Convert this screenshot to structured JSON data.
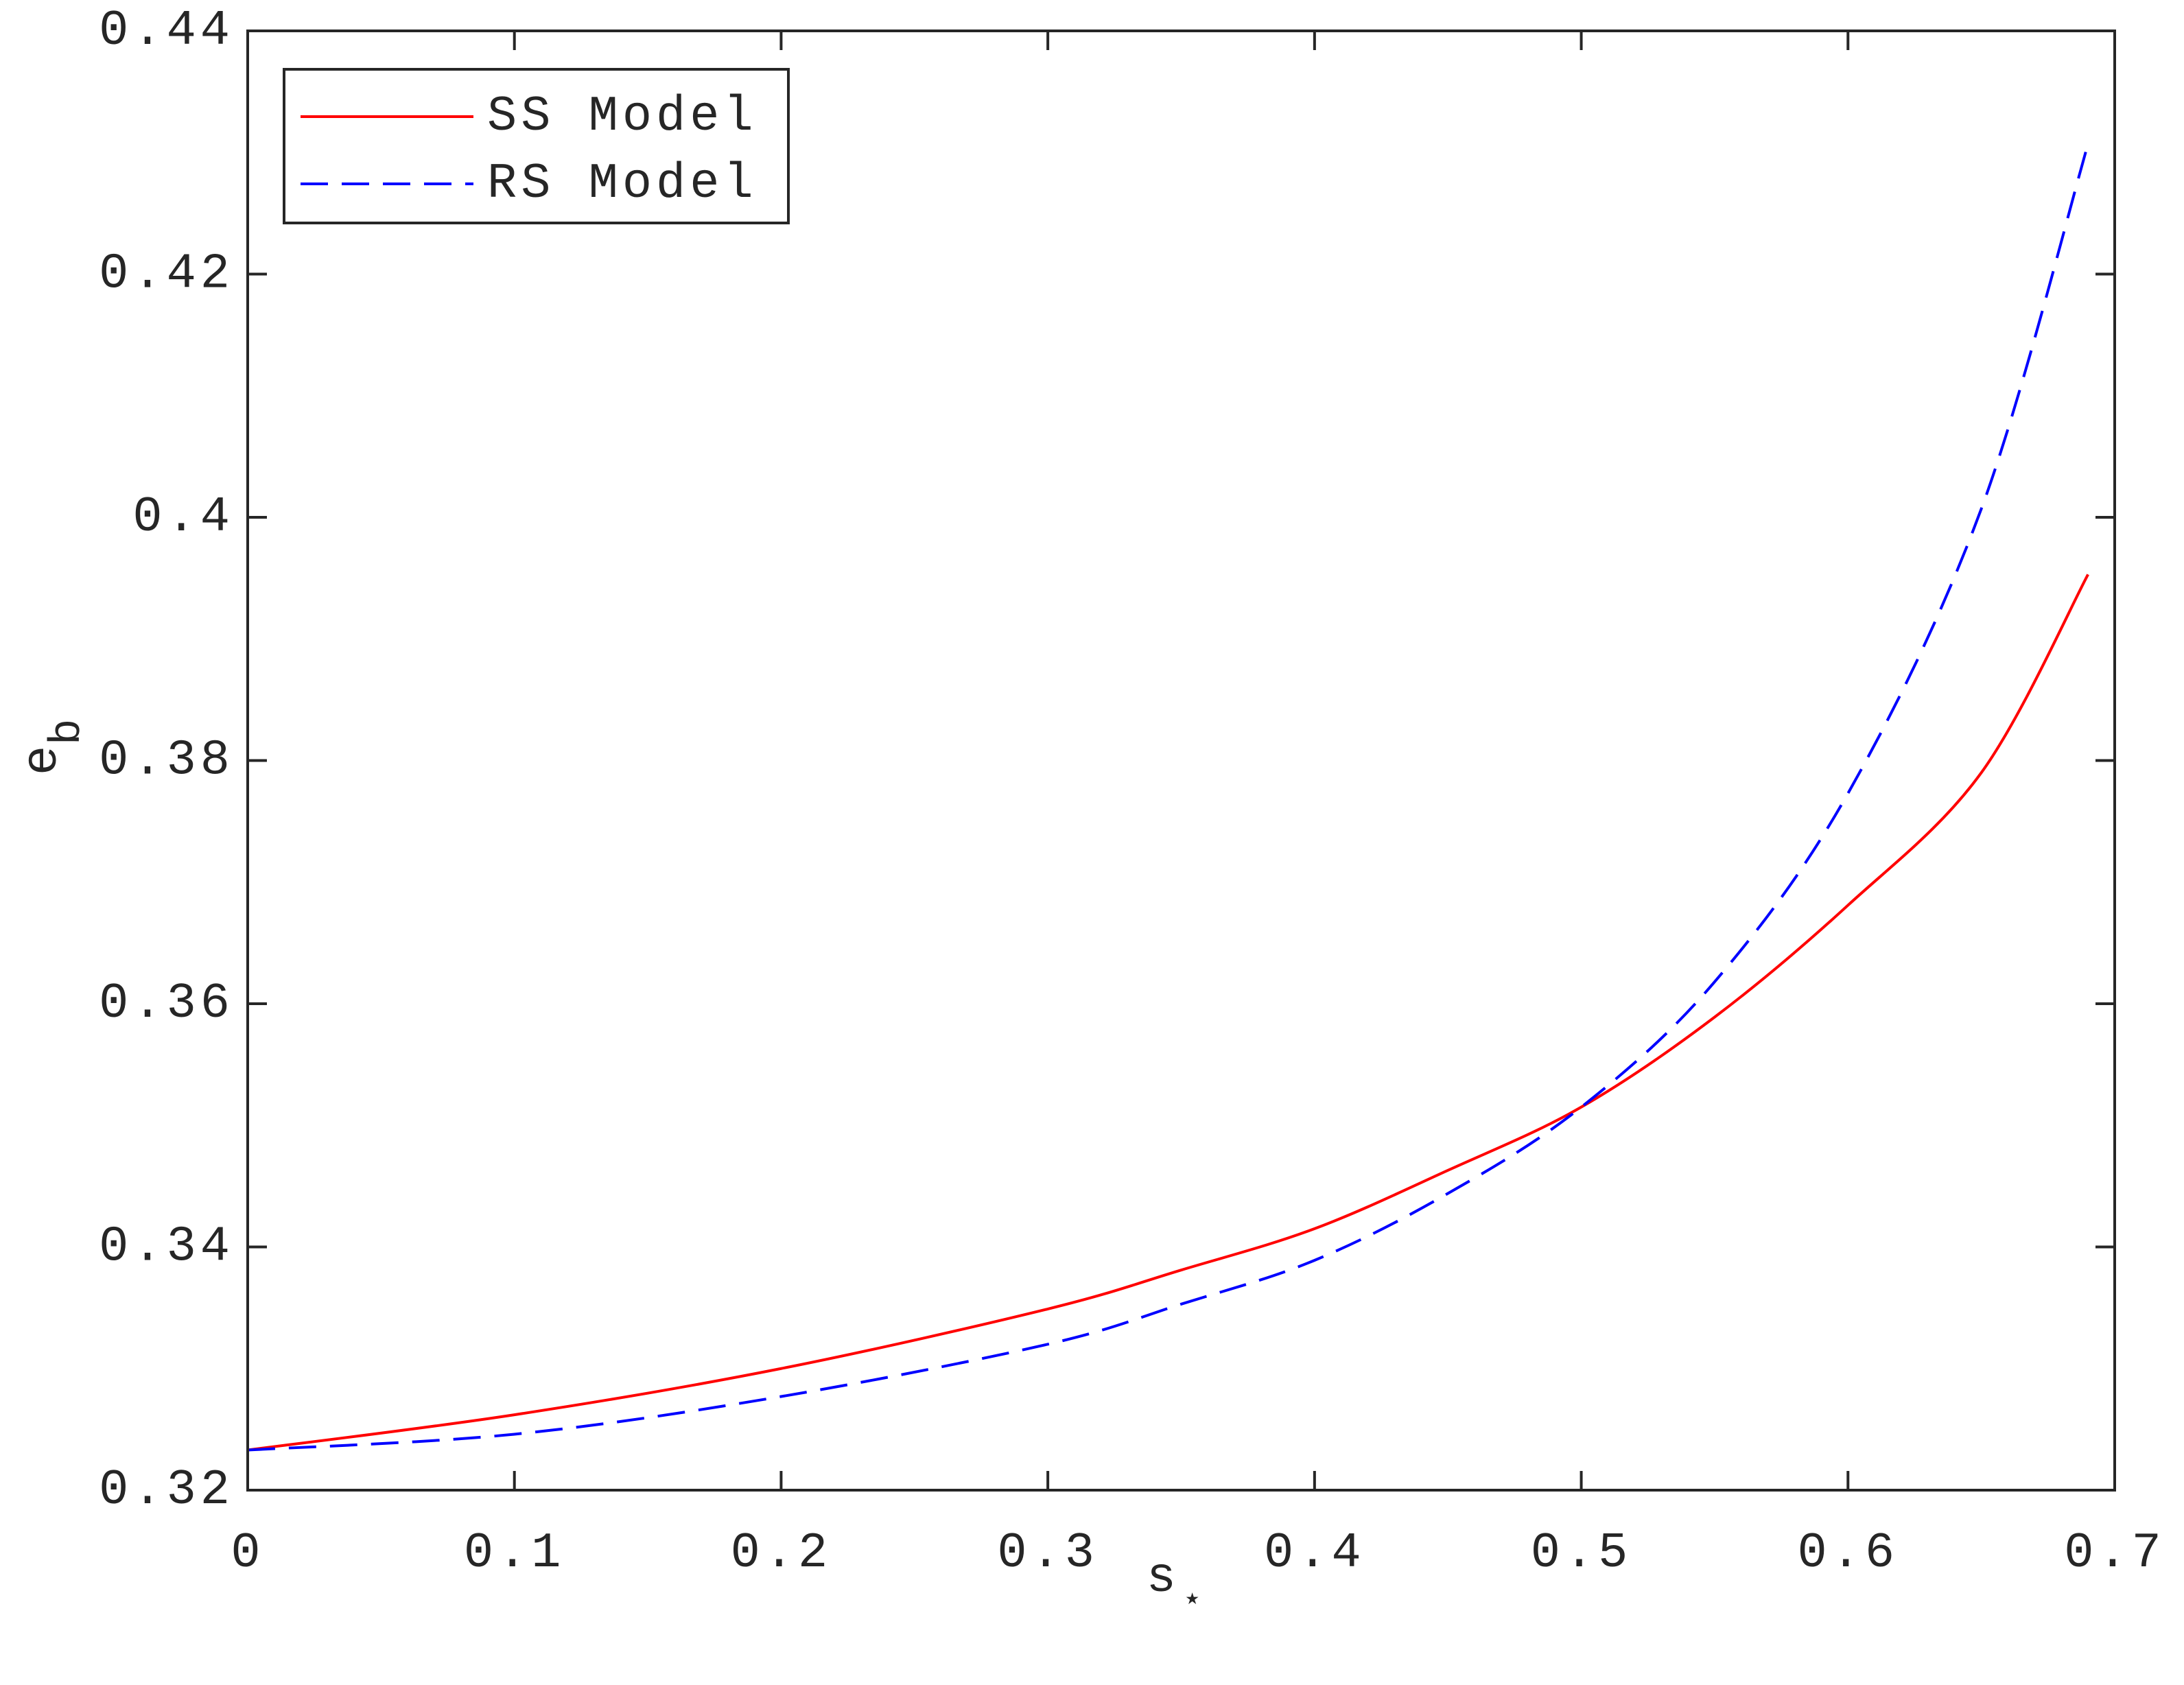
{
  "chart_data": {
    "type": "line",
    "xlabel": "s",
    "xlabel_sub": "⋆",
    "ylabel": "e",
    "ylabel_sub": "b",
    "x": [
      0,
      0.1,
      0.2,
      0.3,
      0.35,
      0.4,
      0.45,
      0.5,
      0.55,
      0.6,
      0.65,
      0.69
    ],
    "series": [
      {
        "name": "SS Model",
        "color": "#ff0000",
        "dash": false,
        "values": [
          0.3233,
          0.3262,
          0.33,
          0.3349,
          0.3381,
          0.3415,
          0.3463,
          0.3515,
          0.3589,
          0.3681,
          0.379,
          0.3953
        ]
      },
      {
        "name": "RS Model",
        "color": "#0000ff",
        "dash": true,
        "values": [
          0.3233,
          0.3246,
          0.3277,
          0.332,
          0.3353,
          0.3389,
          0.3444,
          0.3515,
          0.3618,
          0.3773,
          0.4007,
          0.4307
        ]
      }
    ],
    "xlim": [
      0,
      0.7
    ],
    "xticks": [
      0,
      0.1,
      0.2,
      0.3,
      0.4,
      0.5,
      0.6,
      0.7
    ],
    "ylim": [
      0.32,
      0.44
    ],
    "yticks": [
      0.32,
      0.34,
      0.36,
      0.38,
      0.4,
      0.42,
      0.44
    ],
    "grid": false,
    "legend": "upper left"
  }
}
